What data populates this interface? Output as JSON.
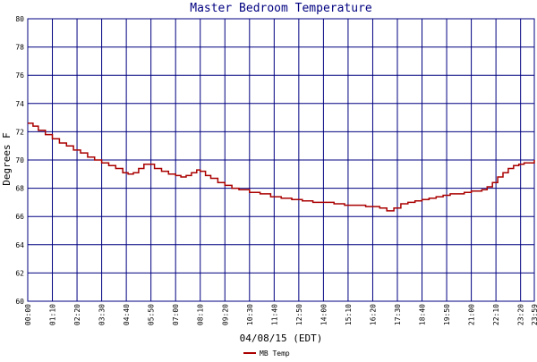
{
  "chart_data": {
    "type": "line",
    "title": "Master Bedroom Temperature",
    "xlabel": "04/08/15 (EDT)",
    "ylabel": "Degrees F",
    "ylim": [
      60,
      80
    ],
    "xlim_minutes": [
      0,
      1439
    ],
    "y_ticks": [
      "60",
      "62",
      "64",
      "66",
      "68",
      "70",
      "72",
      "74",
      "76",
      "78",
      "80"
    ],
    "x_ticks": [
      "00:00",
      "01:10",
      "02:20",
      "03:30",
      "04:40",
      "05:50",
      "07:00",
      "08:10",
      "09:20",
      "10:30",
      "11:40",
      "12:50",
      "14:00",
      "15:10",
      "16:20",
      "17:30",
      "18:40",
      "19:50",
      "21:00",
      "22:10",
      "23:20",
      "23:59"
    ],
    "grid": true,
    "legend_position": "bottom-left",
    "series": [
      {
        "name": "MB Temp",
        "color": "#aa0000",
        "x_time": [
          "00:00",
          "00:15",
          "00:30",
          "00:50",
          "01:10",
          "01:30",
          "01:50",
          "02:10",
          "02:30",
          "02:50",
          "03:10",
          "03:30",
          "03:50",
          "04:10",
          "04:30",
          "04:45",
          "05:00",
          "05:15",
          "05:30",
          "05:45",
          "06:00",
          "06:20",
          "06:40",
          "07:00",
          "07:15",
          "07:30",
          "07:45",
          "08:00",
          "08:10",
          "08:25",
          "08:40",
          "09:00",
          "09:20",
          "09:40",
          "10:00",
          "10:30",
          "11:00",
          "11:30",
          "12:00",
          "12:30",
          "13:00",
          "13:30",
          "14:00",
          "14:30",
          "15:00",
          "15:30",
          "16:00",
          "16:20",
          "16:40",
          "17:00",
          "17:20",
          "17:40",
          "18:00",
          "18:20",
          "18:40",
          "19:00",
          "19:20",
          "19:40",
          "20:00",
          "20:20",
          "20:40",
          "21:00",
          "21:15",
          "21:30",
          "21:45",
          "22:00",
          "22:15",
          "22:30",
          "22:45",
          "23:00",
          "23:15",
          "23:30",
          "23:45",
          "23:59"
        ],
        "values": [
          72.6,
          72.4,
          72.1,
          71.8,
          71.5,
          71.2,
          71.0,
          70.7,
          70.5,
          70.2,
          70.0,
          69.8,
          69.6,
          69.4,
          69.1,
          69.0,
          69.1,
          69.4,
          69.7,
          69.7,
          69.4,
          69.2,
          69.0,
          68.9,
          68.8,
          68.9,
          69.1,
          69.3,
          69.2,
          68.9,
          68.7,
          68.4,
          68.2,
          68.0,
          67.9,
          67.7,
          67.6,
          67.4,
          67.3,
          67.2,
          67.1,
          67.0,
          67.0,
          66.9,
          66.8,
          66.8,
          66.7,
          66.7,
          66.6,
          66.4,
          66.6,
          66.9,
          67.0,
          67.1,
          67.2,
          67.3,
          67.4,
          67.5,
          67.6,
          67.6,
          67.7,
          67.8,
          67.8,
          67.9,
          68.1,
          68.4,
          68.8,
          69.1,
          69.4,
          69.6,
          69.7,
          69.8,
          69.8,
          70.0
        ]
      }
    ]
  }
}
